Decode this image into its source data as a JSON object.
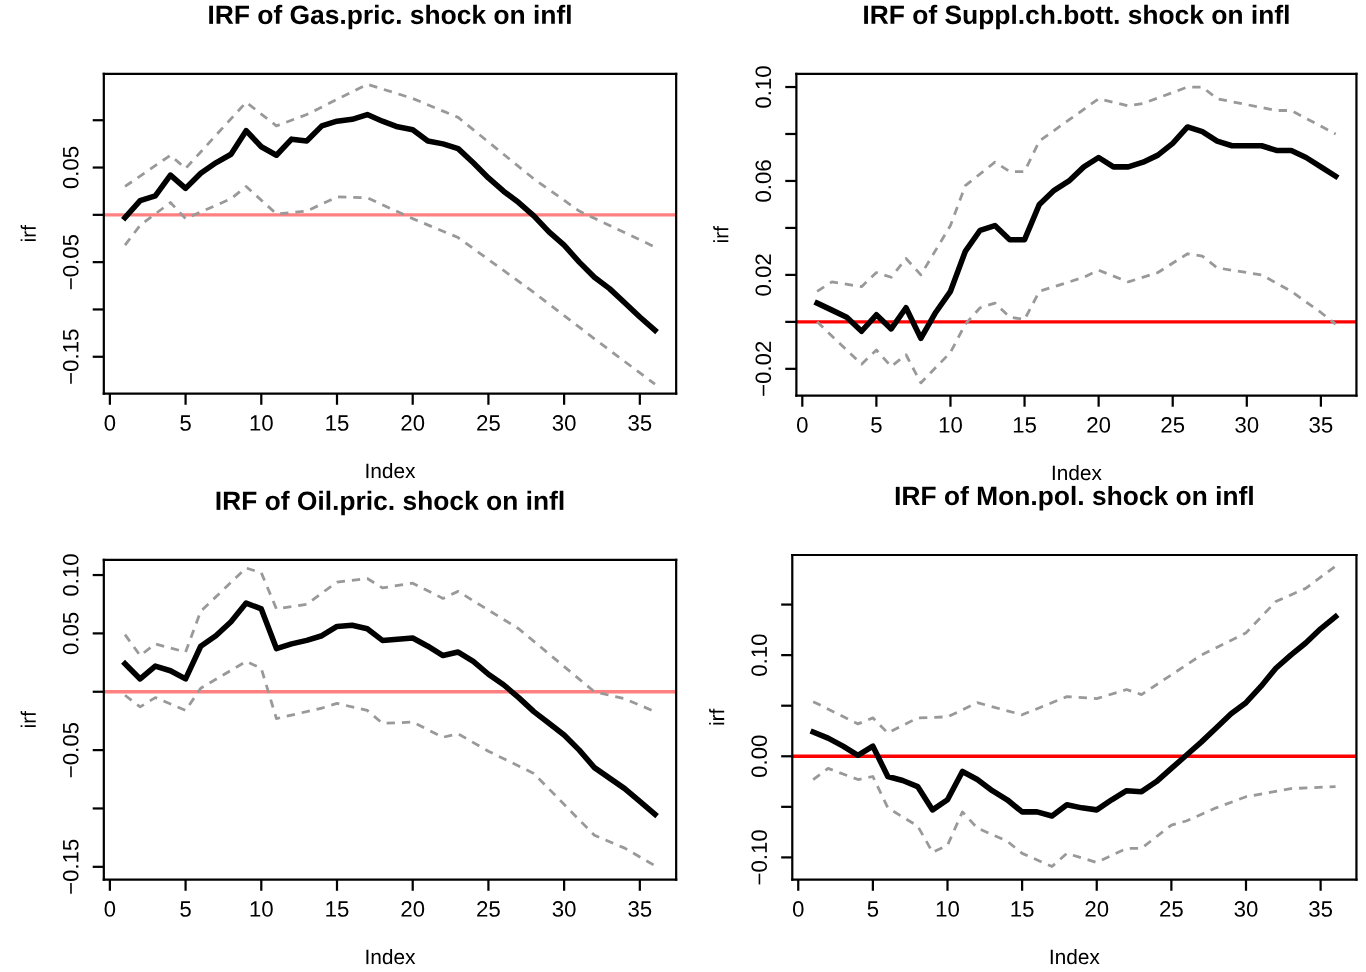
{
  "chart_data": [
    {
      "type": "line",
      "title": "IRF of Gas.pric. shock on infl",
      "xlabel": "Index",
      "ylabel": "irf",
      "xlim": [
        -0.4,
        37.4
      ],
      "ylim": [
        -0.189,
        0.149
      ],
      "xticks": [
        0,
        5,
        10,
        15,
        20,
        25,
        30,
        35
      ],
      "yticks": [
        {
          "value": 0.1,
          "label": null
        },
        {
          "value": 0.05,
          "label": "0.05"
        },
        {
          "value": 0.0,
          "label": null
        },
        {
          "value": -0.05,
          "label": "−0.05"
        },
        {
          "value": -0.1,
          "label": null
        },
        {
          "value": -0.15,
          "label": "−0.15"
        }
      ],
      "grid": false,
      "ref_lines": [
        {
          "axis": "y",
          "value": 0,
          "color": "#ff8080"
        }
      ],
      "series": [
        {
          "color": "#000000",
          "line_style": "solid",
          "x": [
            1,
            2,
            3,
            4,
            5,
            6,
            7,
            8,
            9,
            10,
            11,
            12,
            13,
            14,
            15,
            16,
            17,
            18,
            19,
            20,
            21,
            22,
            23,
            24,
            25,
            26,
            27,
            28,
            29,
            30,
            31,
            32,
            33,
            34,
            35,
            36
          ],
          "values": [
            -0.003,
            0.015,
            0.02,
            0.042,
            0.028,
            0.044,
            0.055,
            0.064,
            0.089,
            0.072,
            0.063,
            0.08,
            0.078,
            0.094,
            0.099,
            0.101,
            0.106,
            0.099,
            0.093,
            0.09,
            0.078,
            0.075,
            0.07,
            0.055,
            0.039,
            0.025,
            0.013,
            -0.001,
            -0.018,
            -0.032,
            -0.05,
            -0.066,
            -0.078,
            -0.093,
            -0.108,
            -0.122
          ]
        },
        {
          "color": "#999999",
          "line_style": "dashed",
          "x": [
            1,
            4,
            5,
            9,
            11,
            13,
            17,
            20,
            23,
            28,
            31,
            36
          ],
          "values": [
            0.03,
            0.063,
            0.049,
            0.119,
            0.094,
            0.106,
            0.138,
            0.123,
            0.103,
            0.038,
            0.004,
            -0.034
          ]
        },
        {
          "color": "#999999",
          "line_style": "dashed",
          "x": [
            1,
            2,
            4,
            5,
            8,
            9,
            11,
            13,
            15,
            17,
            20,
            23,
            28,
            32,
            36
          ],
          "values": [
            -0.032,
            -0.011,
            0.013,
            -0.004,
            0.017,
            0.03,
            0.001,
            0.004,
            0.019,
            0.018,
            -0.004,
            -0.024,
            -0.082,
            -0.131,
            -0.179
          ]
        }
      ]
    },
    {
      "type": "line",
      "title": "IRF of Suppl.ch.bott. shock on infl",
      "xlabel": "Index",
      "ylabel": "irf",
      "xlim": [
        -0.4,
        37.4
      ],
      "ylim": [
        -0.0314,
        0.1056
      ],
      "xticks": [
        0,
        5,
        10,
        15,
        20,
        25,
        30,
        35
      ],
      "yticks": [
        {
          "value": 0.1,
          "label": "0.10"
        },
        {
          "value": 0.08,
          "label": null
        },
        {
          "value": 0.06,
          "label": "0.06"
        },
        {
          "value": 0.04,
          "label": null
        },
        {
          "value": 0.02,
          "label": "0.02"
        },
        {
          "value": 0.0,
          "label": null
        },
        {
          "value": -0.02,
          "label": "−0.02"
        }
      ],
      "grid": false,
      "ref_lines": [
        {
          "axis": "y",
          "value": 0,
          "color": "#ff0000"
        }
      ],
      "series": [
        {
          "color": "#000000",
          "line_style": "solid",
          "x": [
            1,
            2,
            3,
            4,
            5,
            6,
            7,
            8,
            9,
            10,
            11,
            12,
            13,
            14,
            15,
            16,
            17,
            18,
            19,
            20,
            21,
            22,
            23,
            24,
            25,
            26,
            27,
            28,
            29,
            30,
            31,
            32,
            33,
            34,
            35,
            36
          ],
          "values": [
            0.008,
            0.005,
            0.002,
            -0.004,
            0.003,
            -0.003,
            0.006,
            -0.007,
            0.004,
            0.013,
            0.03,
            0.039,
            0.041,
            0.035,
            0.035,
            0.05,
            0.056,
            0.06,
            0.066,
            0.07,
            0.066,
            0.066,
            0.068,
            0.071,
            0.076,
            0.083,
            0.081,
            0.077,
            0.075,
            0.075,
            0.075,
            0.073,
            0.073,
            0.07,
            0.066,
            0.062
          ]
        },
        {
          "color": "#999999",
          "line_style": "dashed",
          "x": [
            1,
            2,
            4,
            5,
            6,
            7,
            8,
            10,
            11,
            13,
            14,
            15,
            16,
            20,
            22,
            23,
            26,
            27,
            28,
            32,
            33,
            36
          ],
          "values": [
            0.013,
            0.017,
            0.015,
            0.021,
            0.019,
            0.027,
            0.02,
            0.041,
            0.058,
            0.068,
            0.064,
            0.064,
            0.077,
            0.095,
            0.092,
            0.093,
            0.1,
            0.1,
            0.095,
            0.09,
            0.09,
            0.08
          ]
        },
        {
          "color": "#999999",
          "line_style": "dashed",
          "x": [
            1,
            4,
            5,
            6,
            7,
            8,
            10,
            11,
            12,
            13,
            14,
            15,
            16,
            19,
            20,
            22,
            24,
            26,
            27,
            28,
            31,
            33,
            35,
            36
          ],
          "values": [
            0.0,
            -0.018,
            -0.012,
            -0.019,
            -0.014,
            -0.026,
            -0.013,
            -0.001,
            0.006,
            0.008,
            0.002,
            0.001,
            0.013,
            0.019,
            0.022,
            0.017,
            0.021,
            0.029,
            0.028,
            0.023,
            0.02,
            0.013,
            0.004,
            -0.001
          ]
        }
      ]
    },
    {
      "type": "line",
      "title": "IRF of Oil.pric. shock on infl",
      "xlabel": "Index",
      "ylabel": "irf",
      "xlim": [
        -0.4,
        37.4
      ],
      "ylim": [
        -0.161,
        0.113
      ],
      "xticks": [
        0,
        5,
        10,
        15,
        20,
        25,
        30,
        35
      ],
      "yticks": [
        {
          "value": 0.1,
          "label": "0.10"
        },
        {
          "value": 0.05,
          "label": "0.05"
        },
        {
          "value": 0.0,
          "label": null
        },
        {
          "value": -0.05,
          "label": "−0.05"
        },
        {
          "value": -0.1,
          "label": null
        },
        {
          "value": -0.15,
          "label": "−0.15"
        }
      ],
      "grid": false,
      "ref_lines": [
        {
          "axis": "y",
          "value": 0,
          "color": "#ff8080"
        }
      ],
      "series": [
        {
          "color": "#000000",
          "line_style": "solid",
          "x": [
            1,
            2,
            3,
            4,
            5,
            6,
            7,
            8,
            9,
            10,
            11,
            12,
            13,
            14,
            15,
            16,
            17,
            18,
            19,
            20,
            21,
            22,
            23,
            24,
            25,
            26,
            27,
            28,
            29,
            30,
            31,
            32,
            33,
            34,
            35,
            36
          ],
          "values": [
            0.024,
            0.011,
            0.022,
            0.018,
            0.011,
            0.039,
            0.048,
            0.06,
            0.076,
            0.071,
            0.037,
            0.041,
            0.044,
            0.048,
            0.056,
            0.057,
            0.054,
            0.044,
            0.045,
            0.046,
            0.039,
            0.031,
            0.034,
            0.026,
            0.015,
            0.006,
            -0.005,
            -0.017,
            -0.027,
            -0.037,
            -0.05,
            -0.065,
            -0.074,
            -0.083,
            -0.094,
            -0.105
          ]
        },
        {
          "color": "#999999",
          "line_style": "dashed",
          "x": [
            1,
            2,
            3,
            5,
            6,
            9,
            10,
            11,
            13,
            15,
            17,
            18,
            20,
            22,
            23,
            27,
            32,
            34,
            36
          ],
          "values": [
            0.049,
            0.031,
            0.041,
            0.034,
            0.069,
            0.106,
            0.102,
            0.071,
            0.075,
            0.094,
            0.097,
            0.089,
            0.093,
            0.08,
            0.086,
            0.054,
            0.0,
            -0.006,
            -0.017
          ]
        },
        {
          "color": "#999999",
          "line_style": "dashed",
          "x": [
            1,
            2,
            3,
            5,
            6,
            9,
            10,
            11,
            14,
            15,
            17,
            18,
            20,
            22,
            23,
            25,
            28,
            32,
            34,
            36
          ],
          "values": [
            -0.003,
            -0.013,
            -0.005,
            -0.016,
            0.003,
            0.026,
            0.02,
            -0.023,
            -0.014,
            -0.01,
            -0.016,
            -0.027,
            -0.026,
            -0.039,
            -0.036,
            -0.051,
            -0.07,
            -0.123,
            -0.134,
            -0.149
          ]
        }
      ]
    },
    {
      "type": "line",
      "title": "IRF of Mon.pol. shock on infl",
      "xlabel": "Index",
      "ylabel": "irf",
      "xlim": [
        -0.4,
        37.4
      ],
      "ylim": [
        -0.122,
        0.199
      ],
      "xticks": [
        0,
        5,
        10,
        15,
        20,
        25,
        30,
        35
      ],
      "yticks": [
        {
          "value": 0.15,
          "label": null
        },
        {
          "value": 0.1,
          "label": "0.10"
        },
        {
          "value": 0.05,
          "label": null
        },
        {
          "value": 0.0,
          "label": "0.00"
        },
        {
          "value": -0.05,
          "label": null
        },
        {
          "value": -0.1,
          "label": "−0.10"
        }
      ],
      "grid": false,
      "ref_lines": [
        {
          "axis": "y",
          "value": 0,
          "color": "#ff0000"
        }
      ],
      "series": [
        {
          "color": "#000000",
          "line_style": "solid",
          "x": [
            1,
            2,
            3,
            4,
            5,
            6,
            7,
            8,
            9,
            10,
            11,
            12,
            13,
            14,
            15,
            16,
            17,
            18,
            19,
            20,
            21,
            22,
            23,
            24,
            25,
            26,
            27,
            28,
            29,
            30,
            31,
            32,
            33,
            34,
            35,
            36
          ],
          "values": [
            0.024,
            0.018,
            0.01,
            0.001,
            0.01,
            -0.02,
            -0.024,
            -0.03,
            -0.053,
            -0.043,
            -0.015,
            -0.023,
            -0.034,
            -0.043,
            -0.055,
            -0.055,
            -0.059,
            -0.048,
            -0.051,
            -0.053,
            -0.043,
            -0.034,
            -0.035,
            -0.025,
            -0.012,
            0.001,
            0.014,
            0.028,
            0.042,
            0.053,
            0.069,
            0.087,
            0.1,
            0.112,
            0.126,
            0.138
          ]
        },
        {
          "color": "#999999",
          "line_style": "dashed",
          "x": [
            1,
            4,
            5,
            6,
            8,
            10,
            12,
            15,
            18,
            20,
            22,
            23,
            27,
            30,
            32,
            34,
            36
          ],
          "values": [
            0.054,
            0.032,
            0.038,
            0.023,
            0.038,
            0.039,
            0.053,
            0.041,
            0.059,
            0.057,
            0.066,
            0.061,
            0.1,
            0.122,
            0.153,
            0.166,
            0.188
          ]
        },
        {
          "color": "#999999",
          "line_style": "dashed",
          "x": [
            1,
            2,
            4,
            5,
            6,
            8,
            9,
            10,
            11,
            12,
            14,
            15,
            17,
            18,
            20,
            22,
            23,
            25,
            26,
            28,
            30,
            33,
            36
          ],
          "values": [
            -0.023,
            -0.012,
            -0.023,
            -0.02,
            -0.051,
            -0.069,
            -0.095,
            -0.088,
            -0.055,
            -0.071,
            -0.084,
            -0.096,
            -0.109,
            -0.096,
            -0.105,
            -0.091,
            -0.091,
            -0.068,
            -0.064,
            -0.051,
            -0.04,
            -0.032,
            -0.03
          ]
        }
      ]
    }
  ]
}
